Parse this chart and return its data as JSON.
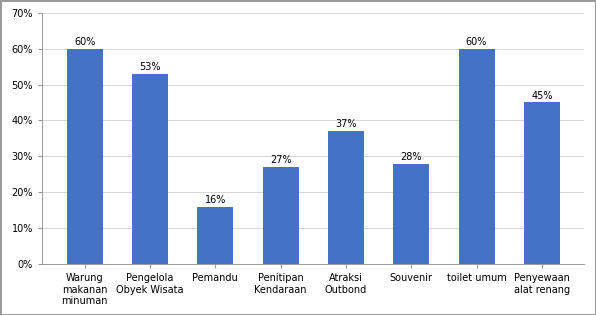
{
  "categories": [
    "Warung\nmakanan\nminuman",
    "Pengelola\nObyek Wisata",
    "Pemandu",
    "Penitipan\nKendaraan",
    "Atraksi\nOutbond",
    "Souvenir",
    "toilet umum",
    "Penyewaan\nalat renang"
  ],
  "values": [
    60,
    53,
    16,
    27,
    37,
    28,
    60,
    45
  ],
  "labels": [
    "60%",
    "53%",
    "16%",
    "27%",
    "37%",
    "28%",
    "60%",
    "45%"
  ],
  "bar_color": "#4472C4",
  "ylim": [
    0,
    70
  ],
  "yticks": [
    0,
    10,
    20,
    30,
    40,
    50,
    60,
    70
  ],
  "ytick_labels": [
    "0%",
    "10%",
    "20%",
    "30%",
    "40%",
    "50%",
    "60%",
    "70%"
  ],
  "background_color": "#ffffff",
  "grid_color": "#d0d0d0",
  "border_color": "#999999",
  "label_fontsize": 7.0,
  "tick_fontsize": 7.0,
  "bar_label_fontsize": 7.0,
  "bar_width": 0.55
}
